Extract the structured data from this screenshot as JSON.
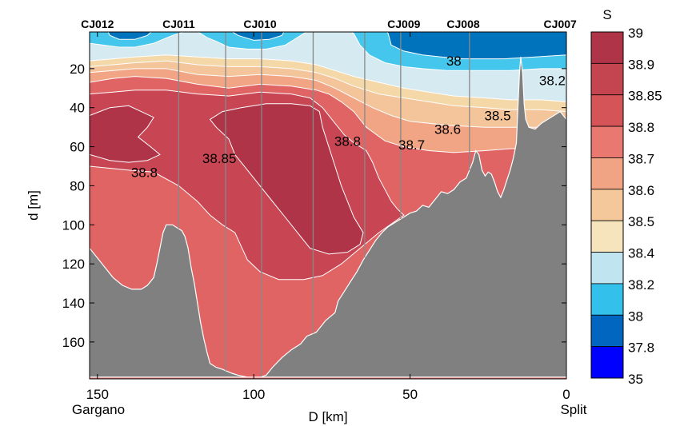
{
  "chart_data": {
    "type": "contour-section",
    "title": "",
    "xlabel": "D [km]",
    "ylabel": "d [m]",
    "xlim": [
      152.5,
      0
    ],
    "ylim": [
      178,
      0
    ],
    "x_ticks": [
      150,
      100,
      50,
      0
    ],
    "x_tick_labels": [
      "150",
      "100",
      "50",
      "0"
    ],
    "x_end_labels": {
      "left": "Gargano",
      "right": "Split"
    },
    "y_ticks": [
      20,
      40,
      60,
      80,
      100,
      120,
      140,
      160
    ],
    "y_tick_labels": [
      "20",
      "40",
      "60",
      "80",
      "100",
      "120",
      "140",
      "160"
    ],
    "stations": [
      {
        "name": "CJ012",
        "D": 150
      },
      {
        "name": "CJ011",
        "D": 124
      },
      {
        "name": "CJ010",
        "D": 98
      },
      {
        "name": "CJ009",
        "D": 52
      },
      {
        "name": "CJ008",
        "D": 33
      },
      {
        "name": "CJ007",
        "D": 2
      }
    ],
    "cast_lines_D": [
      124,
      109,
      97.5,
      81,
      64.5,
      53,
      31
    ],
    "colorbar": {
      "title": "S",
      "levels": [
        35,
        37.8,
        38,
        38.2,
        38.4,
        38.5,
        38.6,
        38.7,
        38.8,
        38.85,
        38.9,
        39
      ],
      "tick_labels": [
        "39",
        "38.9",
        "38.85",
        "38.8",
        "38.7",
        "38.6",
        "38.5",
        "38.4",
        "38.2",
        "38",
        "37.8",
        "35"
      ],
      "colors": [
        "#0000ff",
        "#0066c0",
        "#33c0ea",
        "#c0e4f0",
        "#f5e4bc",
        "#f5c89c",
        "#f0a484",
        "#e87870",
        "#d45458",
        "#c44450",
        "#b03448"
      ]
    },
    "band_colors_plot": {
      "37.8-38": "#0073bd",
      "38-38.2": "#45c6ed",
      "38.2-38.4": "#d6eaf1",
      "38.4-38.5": "#f5d8a8",
      "38.5-38.6": "#f4c49a",
      "38.6-38.7": "#f1a585",
      "38.7-38.8": "#e06464",
      "38.8-38.85": "#c84654",
      "38.85-38.9": "#b03448"
    },
    "contour_labels": [
      {
        "text": "38",
        "D": 36,
        "d": 16
      },
      {
        "text": "38.2",
        "D": 4.5,
        "d": 26
      },
      {
        "text": "38.5",
        "D": 22,
        "d": 44
      },
      {
        "text": "38.6",
        "D": 38,
        "d": 51
      },
      {
        "text": "38.7",
        "D": 49.5,
        "d": 59
      },
      {
        "text": "38.8",
        "D": 70,
        "d": 57
      },
      {
        "text": "38.85",
        "D": 111,
        "d": 66
      },
      {
        "text": "38.8",
        "D": 135,
        "d": 73
      }
    ],
    "bathymetry_color": "#808080",
    "bathymetry": [
      [
        152.5,
        112
      ],
      [
        150,
        117
      ],
      [
        148,
        121
      ],
      [
        145,
        127
      ],
      [
        142,
        131
      ],
      [
        139,
        133
      ],
      [
        136,
        133
      ],
      [
        134,
        131
      ],
      [
        132,
        127
      ],
      [
        131,
        120
      ],
      [
        130,
        112
      ],
      [
        129,
        104
      ],
      [
        128,
        100
      ],
      [
        126,
        100
      ],
      [
        125,
        101
      ],
      [
        123,
        103
      ],
      [
        122,
        106
      ],
      [
        121,
        112
      ],
      [
        120,
        122
      ],
      [
        119,
        130
      ],
      [
        118,
        140
      ],
      [
        117,
        150
      ],
      [
        116,
        158
      ],
      [
        115,
        165
      ],
      [
        114,
        171
      ],
      [
        112,
        173
      ],
      [
        110,
        174
      ],
      [
        107,
        176
      ],
      [
        105,
        177
      ],
      [
        102,
        178
      ],
      [
        98,
        178
      ],
      [
        96,
        177
      ],
      [
        94,
        173
      ],
      [
        91,
        168
      ],
      [
        88,
        164
      ],
      [
        85,
        161
      ],
      [
        83,
        157
      ],
      [
        80,
        155
      ],
      [
        77,
        149
      ],
      [
        74,
        145
      ],
      [
        73,
        139
      ],
      [
        71,
        134
      ],
      [
        69,
        129
      ],
      [
        67,
        124
      ],
      [
        65,
        118
      ],
      [
        63,
        113
      ],
      [
        61,
        108
      ],
      [
        59,
        104
      ],
      [
        57,
        101
      ],
      [
        55,
        99
      ],
      [
        52,
        96
      ],
      [
        50,
        94
      ],
      [
        48,
        93
      ],
      [
        46,
        90
      ],
      [
        44,
        91
      ],
      [
        42,
        87
      ],
      [
        40,
        83
      ],
      [
        38,
        84
      ],
      [
        36,
        82
      ],
      [
        34,
        78
      ],
      [
        32,
        76
      ],
      [
        30,
        68
      ],
      [
        29,
        62
      ],
      [
        28,
        64
      ],
      [
        27,
        72
      ],
      [
        26,
        75
      ],
      [
        25,
        73
      ],
      [
        24,
        74
      ],
      [
        23,
        78
      ],
      [
        22,
        83
      ],
      [
        21,
        86
      ],
      [
        20,
        82
      ],
      [
        19,
        77
      ],
      [
        18,
        72
      ],
      [
        17,
        66
      ],
      [
        16,
        58
      ],
      [
        15.5,
        40
      ],
      [
        15,
        22
      ],
      [
        14.6,
        14
      ],
      [
        14,
        22
      ],
      [
        13.5,
        38
      ],
      [
        13,
        46
      ],
      [
        12,
        50
      ],
      [
        10,
        51
      ],
      [
        8,
        48
      ],
      [
        6,
        46
      ],
      [
        4,
        44
      ],
      [
        2,
        42
      ],
      [
        1,
        44
      ],
      [
        0,
        46
      ],
      [
        0,
        178
      ],
      [
        152.5,
        178
      ]
    ]
  }
}
